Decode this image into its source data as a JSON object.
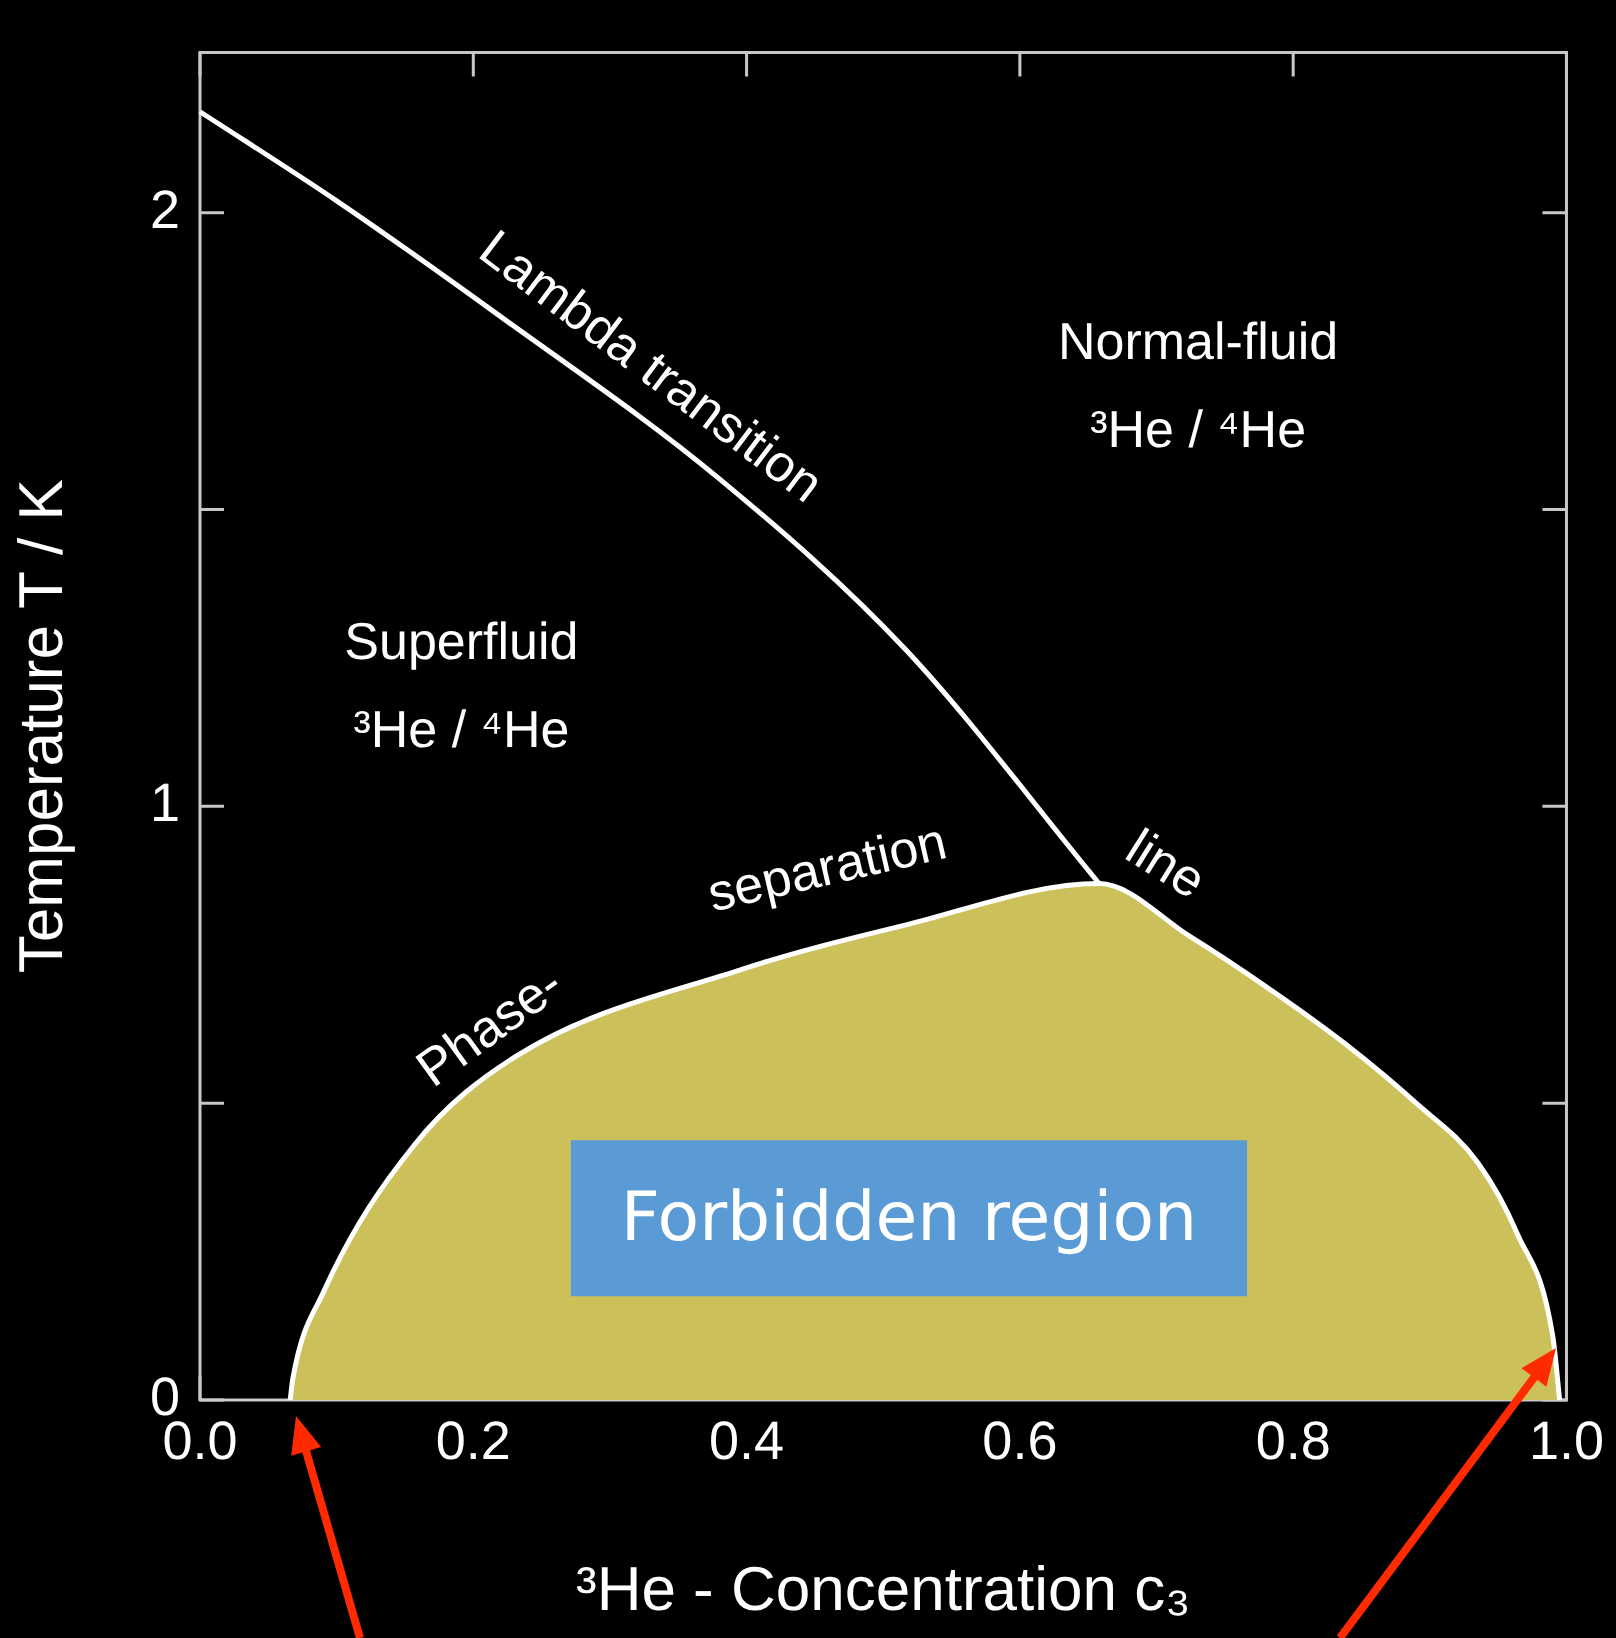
{
  "chart_data": {
    "type": "line",
    "xlabel": "³He - Concentration c₃",
    "ylabel": "Temperature T / K",
    "xlim": [
      0,
      1
    ],
    "ylim": [
      0,
      2.27
    ],
    "xticks": [
      {
        "value": 0,
        "label": "0.0"
      },
      0.2,
      0.4,
      0.6,
      0.8,
      {
        "value": 1,
        "label": "1.0"
      }
    ],
    "yticks": [
      0,
      {
        "value": 0.5,
        "label": null
      },
      1,
      {
        "value": 1.5,
        "label": null
      },
      2
    ],
    "grid": false,
    "legend": false,
    "marker": "none",
    "line_style": "solid",
    "series": [
      {
        "color": "#ffffff",
        "x": [
          0,
          0.1,
          0.217,
          0.381,
          0.516,
          0.658
        ],
        "values": [
          2.17,
          2.02,
          1.83,
          1.55,
          1.265,
          0.87
        ]
      },
      {
        "type": "area",
        "color": "#cbc05a",
        "x": [
          0.066,
          0.068,
          0.09,
          0.157,
          0.232,
          0.396,
          0.516,
          0.658,
          0.725,
          0.784,
          0.838,
          0.89,
          0.935,
          0.964,
          0.99,
          0.995
        ],
        "values": [
          0,
          0.037,
          0.18,
          0.43,
          0.58,
          0.725,
          0.8,
          0.87,
          0.78,
          0.69,
          0.6,
          0.5,
          0.4,
          0.28,
          0.107,
          0
        ]
      }
    ],
    "annotations": [
      "Lambda transition",
      "line",
      "Phase-",
      "separation",
      "Superfluid\n³He / ⁴He",
      "Normal-fluid\n³He / ⁴He",
      "Forbidden region"
    ]
  }
}
